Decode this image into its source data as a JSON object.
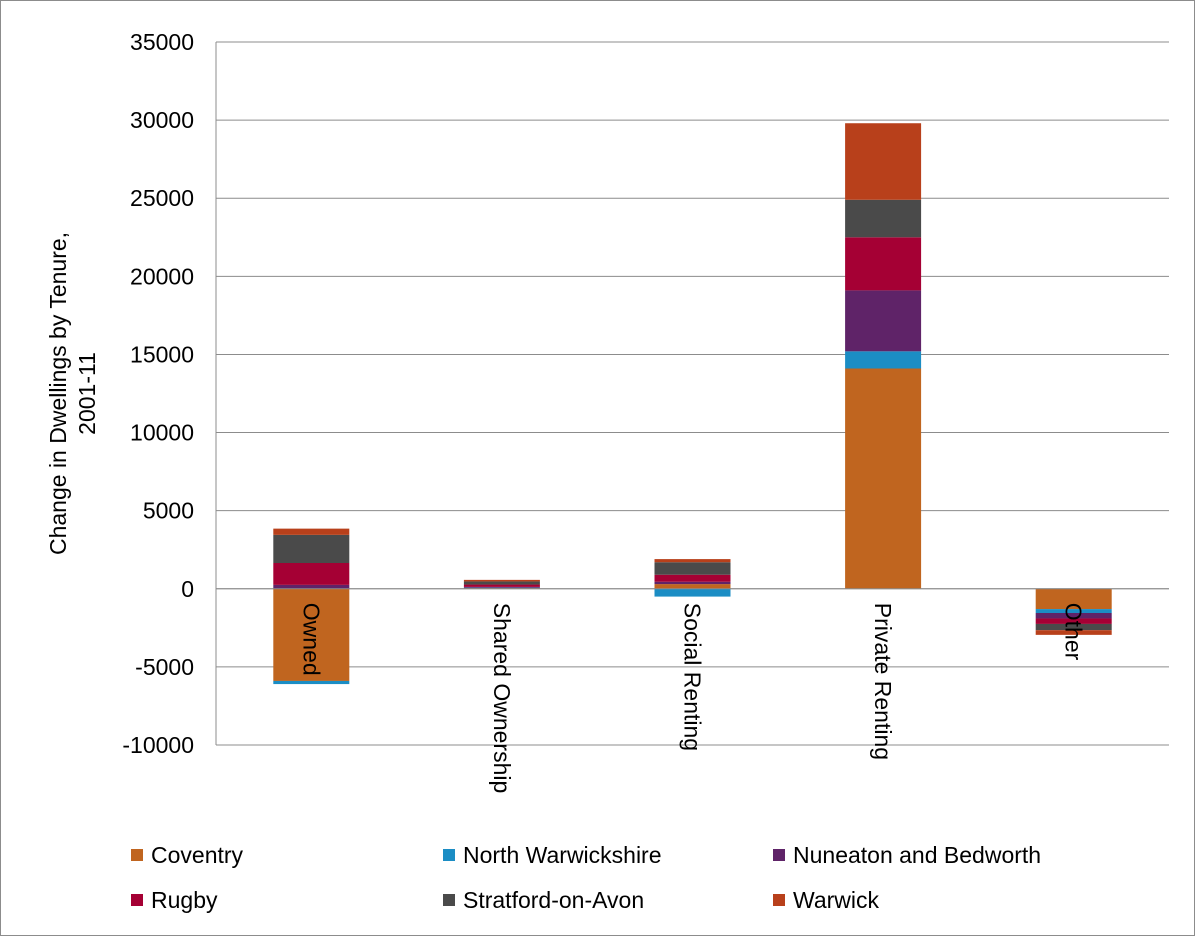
{
  "chart_data": {
    "type": "bar",
    "stacked": true,
    "title": "",
    "xlabel": "",
    "ylabel": "Change in Dwellings by Tenure, 2001-11",
    "ylabel_lines": [
      "Change in Dwellings by Tenure,",
      "2001-11"
    ],
    "ylim": [
      -10000,
      35000
    ],
    "yticks": [
      35000,
      30000,
      25000,
      20000,
      15000,
      10000,
      5000,
      0,
      -5000,
      -10000
    ],
    "grid": true,
    "legend_position": "bottom",
    "categories": [
      "Owned",
      "Shared Ownership",
      "Social Renting",
      "Private Renting",
      "Other"
    ],
    "series": [
      {
        "name": "Coventry",
        "color": "#C0651F",
        "values": [
          -5900,
          50,
          300,
          14100,
          -1300
        ]
      },
      {
        "name": "North Warwickshire",
        "color": "#1B8DC4",
        "values": [
          -200,
          20,
          -500,
          1100,
          -250
        ]
      },
      {
        "name": "Nuneaton and Bedworth",
        "color": "#5F2368",
        "values": [
          250,
          50,
          150,
          3900,
          -350
        ]
      },
      {
        "name": "Rugby",
        "color": "#A50034",
        "values": [
          1400,
          150,
          450,
          3400,
          -350
        ]
      },
      {
        "name": "Stratford-on-Avon",
        "color": "#4A4A4A",
        "values": [
          1800,
          200,
          800,
          2400,
          -400
        ]
      },
      {
        "name": "Warwick",
        "color": "#B8401B",
        "values": [
          400,
          100,
          200,
          4900,
          -300
        ]
      }
    ]
  }
}
